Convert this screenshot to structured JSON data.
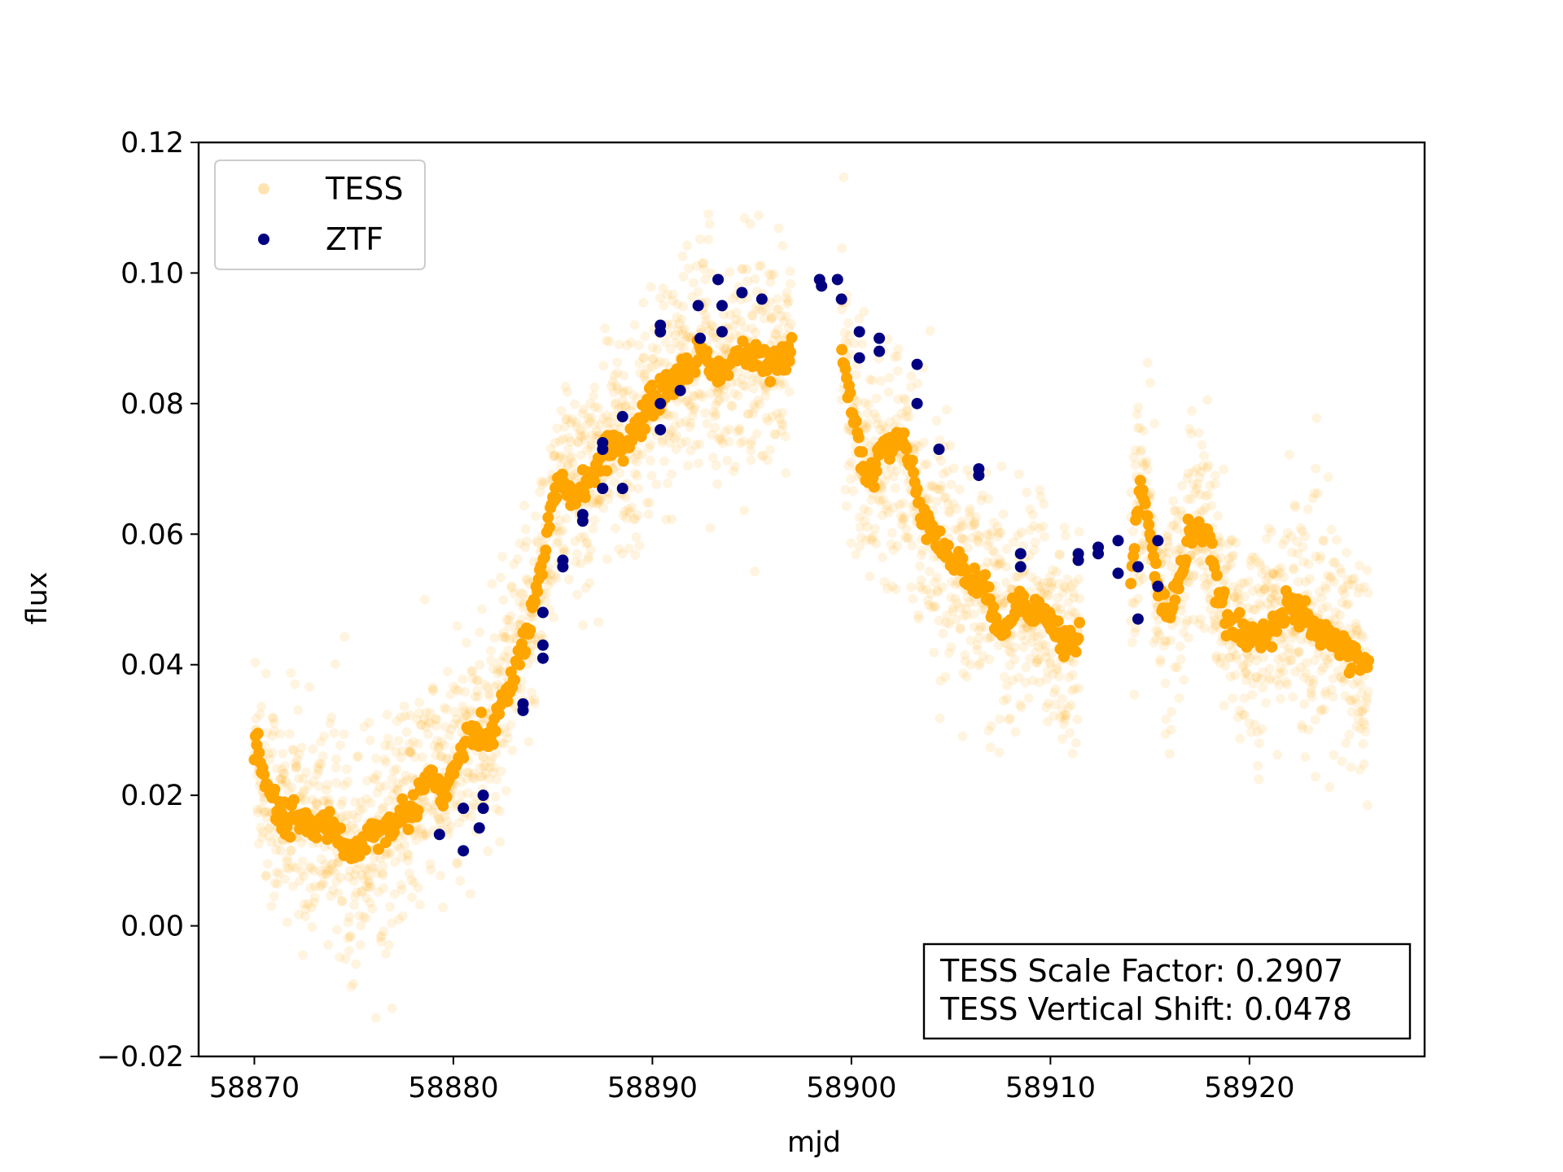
{
  "chart_data": {
    "type": "scatter",
    "xlabel": "mjd",
    "ylabel": "flux",
    "xlim": [
      58867.2,
      58928.8
    ],
    "ylim": [
      -0.02,
      0.12
    ],
    "xticks": [
      58870,
      58880,
      58890,
      58900,
      58910,
      58920
    ],
    "xtick_labels": [
      "58870",
      "58880",
      "58890",
      "58900",
      "58910",
      "58920"
    ],
    "yticks": [
      -0.02,
      0.0,
      0.02,
      0.04,
      0.06,
      0.08,
      0.1,
      0.12
    ],
    "ytick_labels": [
      "−0.02",
      "0.00",
      "0.02",
      "0.04",
      "0.06",
      "0.08",
      "0.10",
      "0.12"
    ],
    "grid": false,
    "legend": {
      "placement": "upper-left",
      "entries": [
        "TESS",
        "ZTF"
      ]
    },
    "annotation": {
      "lines": [
        "TESS Scale Factor: 0.2907",
        "TESS Vertical Shift: 0.0478"
      ],
      "placement": "lower-right"
    },
    "series": [
      {
        "name": "TESS",
        "color": "#ffa500",
        "trend": [
          [
            58870.0,
            0.029
          ],
          [
            58870.5,
            0.022
          ],
          [
            58871.0,
            0.019
          ],
          [
            58871.5,
            0.015
          ],
          [
            58872.0,
            0.017
          ],
          [
            58872.5,
            0.016
          ],
          [
            58873.0,
            0.014
          ],
          [
            58873.5,
            0.016
          ],
          [
            58874.0,
            0.015
          ],
          [
            58874.5,
            0.012
          ],
          [
            58875.0,
            0.011
          ],
          [
            58875.5,
            0.013
          ],
          [
            58876.0,
            0.015
          ],
          [
            58876.5,
            0.014
          ],
          [
            58877.0,
            0.016
          ],
          [
            58877.5,
            0.017
          ],
          [
            58878.0,
            0.018
          ],
          [
            58878.5,
            0.022
          ],
          [
            58879.0,
            0.023
          ],
          [
            58879.5,
            0.019
          ],
          [
            58880.0,
            0.024
          ],
          [
            58880.5,
            0.027
          ],
          [
            58881.0,
            0.03
          ],
          [
            58881.5,
            0.028
          ],
          [
            58882.0,
            0.03
          ],
          [
            58882.5,
            0.034
          ],
          [
            58883.0,
            0.038
          ],
          [
            58883.5,
            0.043
          ],
          [
            58884.0,
            0.048
          ],
          [
            58884.5,
            0.055
          ],
          [
            58885.0,
            0.065
          ],
          [
            58885.5,
            0.068
          ],
          [
            58886.0,
            0.066
          ],
          [
            58886.5,
            0.067
          ],
          [
            58887.0,
            0.07
          ],
          [
            58887.5,
            0.071
          ],
          [
            58888.0,
            0.074
          ],
          [
            58888.5,
            0.073
          ],
          [
            58889.0,
            0.075
          ],
          [
            58889.5,
            0.078
          ],
          [
            58890.0,
            0.08
          ],
          [
            58890.5,
            0.082
          ],
          [
            58891.0,
            0.083
          ],
          [
            58891.5,
            0.085
          ],
          [
            58892.0,
            0.086
          ],
          [
            58892.5,
            0.088
          ],
          [
            58893.0,
            0.086
          ],
          [
            58893.5,
            0.084
          ],
          [
            58894.0,
            0.087
          ],
          [
            58894.5,
            0.088
          ],
          [
            58895.0,
            0.086
          ],
          [
            58895.5,
            0.087
          ],
          [
            58896.0,
            0.085
          ],
          [
            58896.5,
            0.087
          ],
          [
            58897.0,
            0.089
          ],
          [
            58899.5,
            0.089
          ],
          [
            58900.0,
            0.08
          ],
          [
            58900.5,
            0.072
          ],
          [
            58901.0,
            0.068
          ],
          [
            58901.5,
            0.074
          ],
          [
            58902.0,
            0.073
          ],
          [
            58902.5,
            0.075
          ],
          [
            58903.0,
            0.07
          ],
          [
            58903.5,
            0.064
          ],
          [
            58904.0,
            0.062
          ],
          [
            58904.5,
            0.058
          ],
          [
            58905.0,
            0.056
          ],
          [
            58905.5,
            0.055
          ],
          [
            58906.0,
            0.053
          ],
          [
            58906.5,
            0.052
          ],
          [
            58907.0,
            0.049
          ],
          [
            58907.5,
            0.046
          ],
          [
            58908.0,
            0.047
          ],
          [
            58908.5,
            0.05
          ],
          [
            58909.0,
            0.049
          ],
          [
            58909.5,
            0.048
          ],
          [
            58910.0,
            0.047
          ],
          [
            58910.5,
            0.044
          ],
          [
            58911.0,
            0.043
          ],
          [
            58911.5,
            0.045
          ],
          [
            58914.0,
            0.051
          ],
          [
            58914.5,
            0.068
          ],
          [
            58915.0,
            0.06
          ],
          [
            58915.5,
            0.05
          ],
          [
            58916.0,
            0.048
          ],
          [
            58916.5,
            0.053
          ],
          [
            58917.0,
            0.061
          ],
          [
            58917.5,
            0.061
          ],
          [
            58918.0,
            0.058
          ],
          [
            58918.5,
            0.05
          ],
          [
            58919.0,
            0.046
          ],
          [
            58919.5,
            0.045
          ],
          [
            58920.0,
            0.044
          ],
          [
            58920.5,
            0.045
          ],
          [
            58921.0,
            0.046
          ],
          [
            58921.5,
            0.047
          ],
          [
            58922.0,
            0.049
          ],
          [
            58922.5,
            0.048
          ],
          [
            58923.0,
            0.046
          ],
          [
            58923.5,
            0.045
          ],
          [
            58924.0,
            0.044
          ],
          [
            58924.5,
            0.044
          ],
          [
            58925.0,
            0.041
          ],
          [
            58925.5,
            0.041
          ],
          [
            58926.0,
            0.04
          ]
        ]
      },
      {
        "name": "ZTF",
        "color": "#000080",
        "points": [
          [
            58879.3,
            0.014
          ],
          [
            58880.5,
            0.018
          ],
          [
            58880.5,
            0.0115
          ],
          [
            58881.3,
            0.015
          ],
          [
            58881.5,
            0.02
          ],
          [
            58881.5,
            0.018
          ],
          [
            58883.5,
            0.034
          ],
          [
            58883.5,
            0.033
          ],
          [
            58884.5,
            0.048
          ],
          [
            58884.5,
            0.043
          ],
          [
            58884.5,
            0.041
          ],
          [
            58885.5,
            0.056
          ],
          [
            58885.5,
            0.055
          ],
          [
            58886.5,
            0.063
          ],
          [
            58886.5,
            0.062
          ],
          [
            58887.5,
            0.074
          ],
          [
            58887.5,
            0.073
          ],
          [
            58887.5,
            0.067
          ],
          [
            58888.5,
            0.078
          ],
          [
            58888.5,
            0.067
          ],
          [
            58890.4,
            0.092
          ],
          [
            58890.4,
            0.091
          ],
          [
            58890.4,
            0.08
          ],
          [
            58890.4,
            0.076
          ],
          [
            58891.4,
            0.082
          ],
          [
            58892.3,
            0.095
          ],
          [
            58892.4,
            0.09
          ],
          [
            58893.3,
            0.099
          ],
          [
            58893.5,
            0.095
          ],
          [
            58893.5,
            0.091
          ],
          [
            58894.5,
            0.097
          ],
          [
            58895.5,
            0.096
          ],
          [
            58898.4,
            0.099
          ],
          [
            58898.5,
            0.098
          ],
          [
            58899.3,
            0.099
          ],
          [
            58899.5,
            0.096
          ],
          [
            58900.4,
            0.091
          ],
          [
            58900.4,
            0.087
          ],
          [
            58901.4,
            0.09
          ],
          [
            58901.4,
            0.088
          ],
          [
            58903.3,
            0.086
          ],
          [
            58903.3,
            0.08
          ],
          [
            58904.4,
            0.073
          ],
          [
            58906.4,
            0.07
          ],
          [
            58906.4,
            0.069
          ],
          [
            58908.5,
            0.057
          ],
          [
            58908.5,
            0.055
          ],
          [
            58911.4,
            0.057
          ],
          [
            58911.4,
            0.056
          ],
          [
            58912.4,
            0.058
          ],
          [
            58912.4,
            0.057
          ],
          [
            58913.4,
            0.059
          ],
          [
            58913.4,
            0.054
          ],
          [
            58914.4,
            0.055
          ],
          [
            58914.4,
            0.047
          ],
          [
            58915.4,
            0.059
          ],
          [
            58915.4,
            0.052
          ]
        ]
      }
    ]
  }
}
